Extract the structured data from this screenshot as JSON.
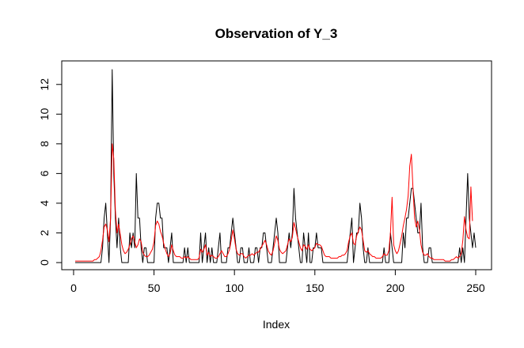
{
  "chart_data": {
    "type": "line",
    "title": "Observation of Y_3",
    "xlabel": "Index",
    "ylabel": "",
    "xlim": [
      1,
      250
    ],
    "ylim": [
      0,
      13
    ],
    "x_ticks": [
      0,
      50,
      100,
      150,
      200,
      250
    ],
    "y_ticks": [
      0,
      2,
      4,
      6,
      8,
      10,
      12
    ],
    "grid": false,
    "series": [
      {
        "color": "#000000",
        "values": [
          0,
          0,
          0,
          0,
          0,
          0,
          0,
          0,
          0,
          0,
          0,
          0,
          0,
          0,
          0,
          0,
          0,
          1,
          3,
          4,
          2,
          0,
          3,
          13,
          6,
          3,
          1,
          3,
          1,
          0,
          0,
          0,
          0,
          0,
          2,
          1,
          2,
          1,
          6,
          3,
          3,
          1,
          0,
          1,
          1,
          0,
          0,
          0,
          0,
          0,
          3,
          4,
          4,
          3,
          3,
          1,
          1,
          1,
          0,
          1,
          2,
          0,
          0,
          0,
          0,
          0,
          0,
          0,
          1,
          0,
          1,
          0,
          0,
          0,
          0,
          0,
          0,
          0,
          2,
          0,
          1,
          2,
          0,
          1,
          0,
          1,
          0,
          0,
          0,
          1,
          2,
          0,
          0,
          0,
          0,
          1,
          1,
          2,
          3,
          2,
          1,
          0,
          0,
          1,
          1,
          0,
          0,
          0,
          1,
          0,
          0,
          0,
          1,
          1,
          0,
          1,
          1,
          2,
          2,
          1,
          0,
          0,
          0,
          1,
          2,
          3,
          2,
          0,
          0,
          0,
          0,
          0,
          1,
          2,
          1,
          2,
          5,
          3,
          2,
          1,
          0,
          0,
          2,
          1,
          0,
          2,
          0,
          0,
          1,
          1,
          2,
          1,
          1,
          1,
          0,
          0,
          0,
          0,
          0,
          0,
          0,
          0,
          0,
          0,
          0,
          0,
          0,
          0,
          0,
          0,
          1,
          2,
          3,
          0,
          1,
          2,
          2,
          4,
          3,
          1,
          0,
          0,
          1,
          0,
          0,
          0,
          0,
          0,
          0,
          0,
          0,
          0,
          1,
          0,
          0,
          0,
          2,
          1,
          0,
          0,
          0,
          0,
          0,
          0,
          2,
          1,
          3,
          3,
          4,
          5,
          5,
          4,
          3,
          2,
          2,
          4,
          1,
          0,
          0,
          0,
          1,
          1,
          0,
          0,
          0,
          0,
          0,
          0,
          0,
          0,
          0,
          0,
          0,
          0,
          0,
          0,
          0,
          0,
          0,
          1,
          0,
          1,
          0,
          3,
          6,
          3,
          2,
          1,
          2,
          1
        ]
      },
      {
        "color": "#ff0000",
        "values": [
          0.1,
          0.1,
          0.1,
          0.1,
          0.1,
          0.1,
          0.1,
          0.1,
          0.1,
          0.1,
          0.1,
          0.1,
          0.2,
          0.2,
          0.3,
          0.4,
          0.8,
          1.5,
          2.4,
          2.6,
          2.2,
          1.4,
          3.0,
          8.0,
          7.0,
          3.5,
          2.0,
          2.6,
          1.9,
          1.2,
          0.8,
          0.6,
          0.7,
          0.9,
          1.2,
          1.6,
          1.8,
          1.4,
          1.0,
          1.2,
          1.6,
          1.4,
          0.7,
          0.5,
          0.4,
          0.4,
          0.5,
          0.7,
          0.9,
          1.4,
          2.5,
          2.8,
          2.6,
          2.1,
          1.8,
          1.3,
          0.9,
          0.6,
          0.4,
          0.6,
          1.2,
          0.8,
          0.5,
          0.4,
          0.4,
          0.4,
          0.3,
          0.3,
          0.4,
          0.3,
          0.4,
          0.3,
          0.2,
          0.2,
          0.2,
          0.2,
          0.2,
          0.3,
          0.9,
          0.7,
          0.9,
          1.2,
          0.5,
          0.7,
          0.4,
          0.5,
          0.4,
          0.3,
          0.3,
          0.4,
          0.6,
          0.8,
          0.6,
          0.4,
          0.4,
          0.6,
          0.9,
          1.5,
          2.2,
          1.6,
          0.9,
          0.6,
          0.5,
          0.6,
          0.6,
          0.4,
          0.3,
          0.4,
          0.5,
          0.5,
          0.6,
          0.5,
          0.6,
          0.7,
          0.7,
          0.9,
          1.1,
          1.3,
          1.5,
          1.2,
          0.8,
          0.6,
          0.5,
          0.8,
          1.3,
          1.8,
          1.5,
          0.9,
          0.7,
          0.6,
          0.7,
          0.8,
          1.2,
          1.6,
          1.4,
          1.7,
          2.7,
          2.3,
          1.8,
          1.4,
          1.0,
          0.8,
          1.2,
          1.1,
          0.9,
          1.2,
          0.9,
          0.8,
          0.9,
          1.0,
          1.3,
          1.2,
          1.2,
          1.1,
          0.8,
          0.5,
          0.4,
          0.4,
          0.4,
          0.3,
          0.3,
          0.3,
          0.3,
          0.3,
          0.4,
          0.4,
          0.5,
          0.5,
          0.6,
          0.8,
          1.4,
          1.8,
          2.0,
          1.3,
          1.2,
          1.8,
          2.1,
          2.4,
          2.2,
          1.5,
          0.8,
          0.7,
          0.8,
          0.6,
          0.5,
          0.4,
          0.4,
          0.3,
          0.3,
          0.3,
          0.3,
          0.4,
          0.6,
          0.5,
          0.5,
          0.8,
          2.0,
          4.4,
          1.2,
          0.8,
          0.6,
          0.8,
          1.3,
          1.8,
          2.5,
          3.0,
          3.6,
          4.5,
          6.5,
          7.3,
          5.0,
          3.0,
          2.4,
          2.8,
          2.2,
          1.2,
          0.7,
          0.5,
          0.5,
          0.6,
          0.4,
          0.3,
          0.3,
          0.2,
          0.2,
          0.2,
          0.2,
          0.2,
          0.2,
          0.2,
          0.1,
          0.1,
          0.1,
          0.1,
          0.2,
          0.2,
          0.3,
          0.4,
          0.3,
          0.4,
          0.6,
          1.5,
          3.1,
          2.2,
          1.7,
          1.6,
          5.1,
          2.8
        ]
      }
    ]
  }
}
